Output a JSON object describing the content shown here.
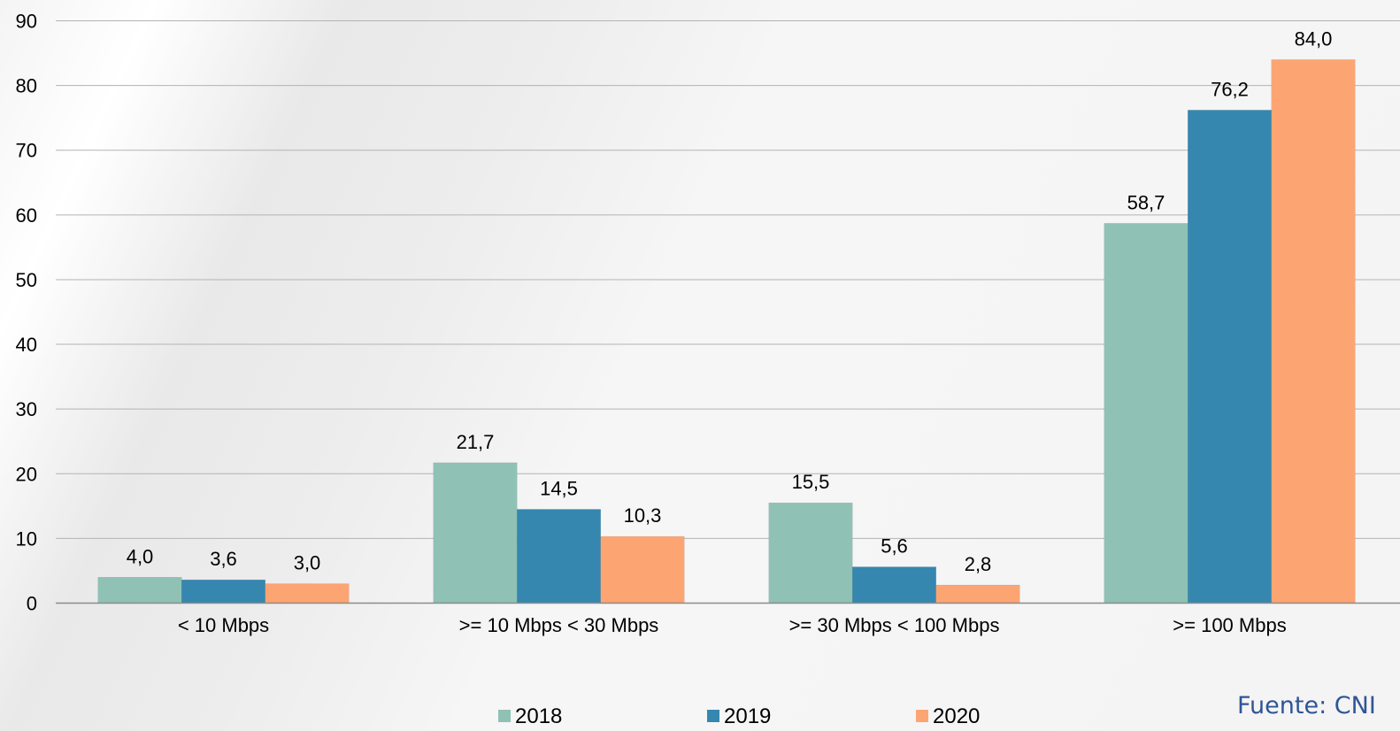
{
  "chart_data": {
    "type": "bar",
    "categories": [
      "< 10 Mbps",
      ">= 10 Mbps < 30 Mbps",
      ">= 30 Mbps < 100 Mbps",
      ">= 100 Mbps"
    ],
    "series": [
      {
        "name": "2018",
        "values": [
          4.0,
          21.7,
          15.5,
          58.7
        ],
        "labels": [
          "4,0",
          "21,7",
          "15,5",
          "58,7"
        ],
        "color": "#8fc2b4"
      },
      {
        "name": "2019",
        "values": [
          3.6,
          14.5,
          5.6,
          76.2
        ],
        "labels": [
          "3,6",
          "14,5",
          "5,6",
          "76,2"
        ],
        "color": "#3587b0"
      },
      {
        "name": "2020",
        "values": [
          3.0,
          10.3,
          2.8,
          84.0
        ],
        "labels": [
          "3,0",
          "10,3",
          "2,8",
          "84,0"
        ],
        "color": "#fda572"
      }
    ],
    "ylim": [
      0,
      90
    ],
    "yticks": [
      0,
      10,
      20,
      30,
      40,
      50,
      60,
      70,
      80,
      90
    ],
    "grid": true,
    "legend_position": "bottom",
    "title": "",
    "xlabel": "",
    "ylabel": ""
  },
  "source_text": "Fuente: CNI",
  "colors": {
    "grid": "#b3b3b3",
    "axis": "#8c8c8c",
    "text": "#000000",
    "source": "#2f5596"
  }
}
